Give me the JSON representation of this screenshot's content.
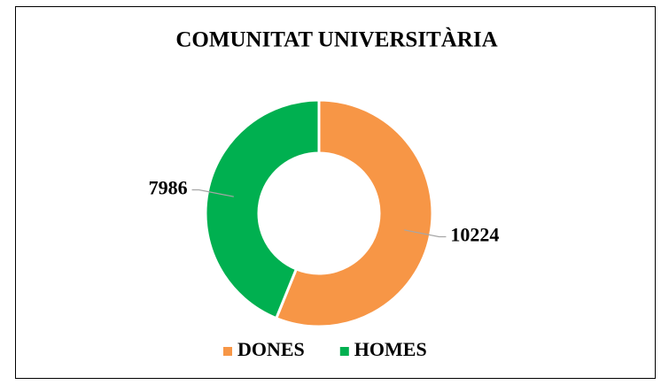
{
  "chart_data": {
    "type": "donut",
    "title": "COMUNITAT UNIVERSITÀRIA",
    "categories": [
      "DONES",
      "HOMES"
    ],
    "values": [
      10224,
      7986
    ],
    "colors": [
      "#f79646",
      "#00b050"
    ],
    "legend": "bottom"
  }
}
